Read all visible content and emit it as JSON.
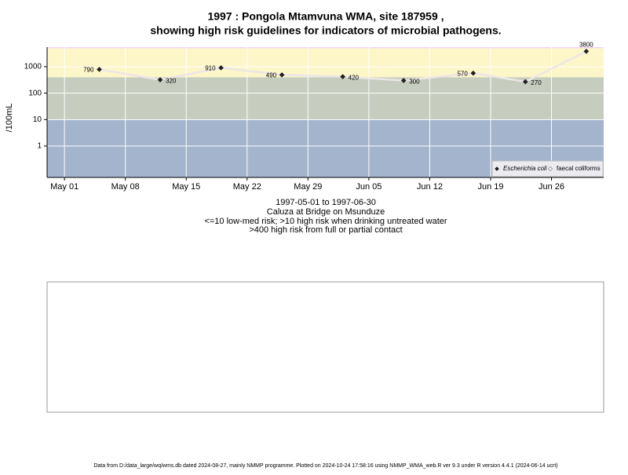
{
  "chart_data": {
    "type": "line",
    "title": [
      "1997 : Pongola Mtamvuna WMA, site 187959 ,",
      "showing high risk guidelines for indicators of microbial pathogens."
    ],
    "y_label": "/100mL",
    "x_label": [
      "1997-05-01 to 1997-06-30",
      "Caluza at Bridge on Msunduze",
      "<=10 low-med risk; >10 high risk when drinking untreated water",
      ">400 high risk from full or partial contact"
    ],
    "footer": "Data from D:/data_large/wq/wms.db dated 2024-08-27, mainly NMMP programme. Plotted on 2024-10-24 17:58:16 using NMMP_WMA_web.R ver 9.3 under R version 4.4.1 (2024-06-14 ucrt)",
    "x": [
      "1997-05-05",
      "1997-05-12",
      "1997-05-19",
      "1997-05-26",
      "1997-06-02",
      "1997-06-09",
      "1997-06-17",
      "1997-06-23",
      "1997-06-30"
    ],
    "series": [
      {
        "name": "Escherichia coli",
        "color": "#222222",
        "line_color": "#ece6e6",
        "values": [
          790,
          320,
          910,
          490,
          420,
          300,
          570,
          270,
          3800
        ]
      },
      {
        "name": "faecal coliforms",
        "color": "#ffffff",
        "line_color": "#ece6e6",
        "values": [
          null,
          null,
          null,
          null,
          null,
          null,
          null,
          null,
          null
        ]
      }
    ],
    "xlim": [
      "1997-04-29",
      "1997-07-02"
    ],
    "xticks": [
      {
        "value": "1997-05-01",
        "label": "May 01"
      },
      {
        "value": "1997-05-08",
        "label": "May 08"
      },
      {
        "value": "1997-05-15",
        "label": "May 15"
      },
      {
        "value": "1997-05-22",
        "label": "May 22"
      },
      {
        "value": "1997-05-29",
        "label": "May 29"
      },
      {
        "value": "1997-06-05",
        "label": "Jun 05"
      },
      {
        "value": "1997-06-12",
        "label": "Jun 12"
      },
      {
        "value": "1997-06-19",
        "label": "Jun 19"
      },
      {
        "value": "1997-06-26",
        "label": "Jun 26"
      }
    ],
    "ylim": [
      0.065,
      5500
    ],
    "yticks": [
      1,
      10,
      100,
      1000
    ],
    "log_y": true,
    "grid": true,
    "legend": "bottom-right",
    "bands": [
      {
        "from": 0.065,
        "to": 10,
        "color": "#a3b4cc"
      },
      {
        "from": 10,
        "to": 400,
        "color": "#c6ccbe"
      },
      {
        "from": 400,
        "to": 5000,
        "color": "#fdf6c8"
      },
      {
        "from": 5000,
        "to": 5500,
        "color": "#f2d2f2"
      }
    ]
  }
}
